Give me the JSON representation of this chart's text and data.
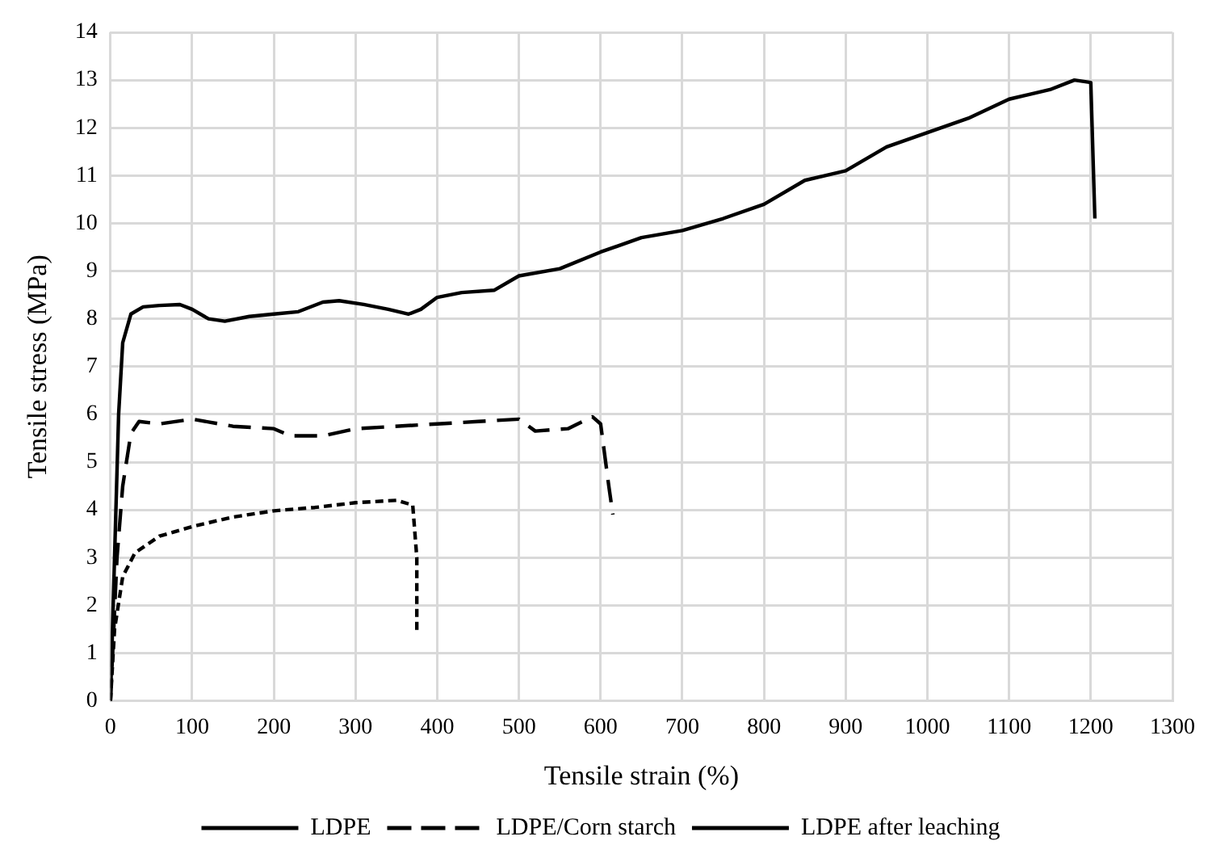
{
  "chart_data": {
    "type": "line",
    "xlabel": "Tensile strain (%)",
    "ylabel": "Tensile stress (MPa)",
    "xlim": [
      0,
      1300
    ],
    "xticks": [
      0,
      100,
      200,
      300,
      400,
      500,
      600,
      700,
      800,
      900,
      1000,
      1100,
      1200,
      1300
    ],
    "ylim": [
      0,
      14
    ],
    "yticks": [
      0,
      1,
      2,
      3,
      4,
      5,
      6,
      7,
      8,
      9,
      10,
      11,
      12,
      13,
      14
    ],
    "grid": true,
    "legend": "bottom",
    "marker": "none",
    "series": [
      {
        "name": "LDPE",
        "color": "#000000",
        "line_style": "solid",
        "x": [
          0,
          5,
          10,
          15,
          25,
          40,
          60,
          85,
          100,
          120,
          140,
          170,
          200,
          230,
          260,
          280,
          310,
          340,
          365,
          380,
          400,
          430,
          470,
          500,
          550,
          600,
          650,
          700,
          750,
          800,
          850,
          900,
          950,
          1000,
          1050,
          1100,
          1150,
          1180,
          1200,
          1205
        ],
        "values": [
          0,
          3,
          6,
          7.5,
          8.1,
          8.25,
          8.28,
          8.3,
          8.2,
          8,
          7.95,
          8.05,
          8.1,
          8.15,
          8.35,
          8.38,
          8.3,
          8.2,
          8.1,
          8.2,
          8.45,
          8.55,
          8.6,
          8.9,
          9.05,
          9.4,
          9.7,
          9.85,
          10.1,
          10.4,
          10.9,
          11.1,
          11.6,
          11.9,
          12.2,
          12.6,
          12.8,
          13,
          12.95,
          10.1
        ]
      },
      {
        "name": "LDPE/Corn starch",
        "color": "#000000",
        "line_style": "dashed",
        "x": [
          0,
          8,
          15,
          25,
          35,
          60,
          100,
          150,
          200,
          220,
          260,
          300,
          400,
          450,
          500,
          520,
          560,
          590,
          600,
          610,
          615
        ],
        "values": [
          0,
          3,
          4.5,
          5.6,
          5.85,
          5.8,
          5.9,
          5.75,
          5.7,
          5.55,
          5.55,
          5.7,
          5.8,
          5.85,
          5.9,
          5.65,
          5.7,
          5.95,
          5.8,
          4.5,
          3.9
        ]
      },
      {
        "name": "LDPE after leaching",
        "color": "#000000",
        "line_style": "dotted",
        "x": [
          0,
          5,
          15,
          30,
          60,
          100,
          150,
          200,
          250,
          300,
          350,
          370,
          375,
          375
        ],
        "values": [
          0,
          1.5,
          2.6,
          3.1,
          3.45,
          3.65,
          3.85,
          3.98,
          4.05,
          4.15,
          4.2,
          4.1,
          3,
          1.4
        ]
      }
    ]
  }
}
